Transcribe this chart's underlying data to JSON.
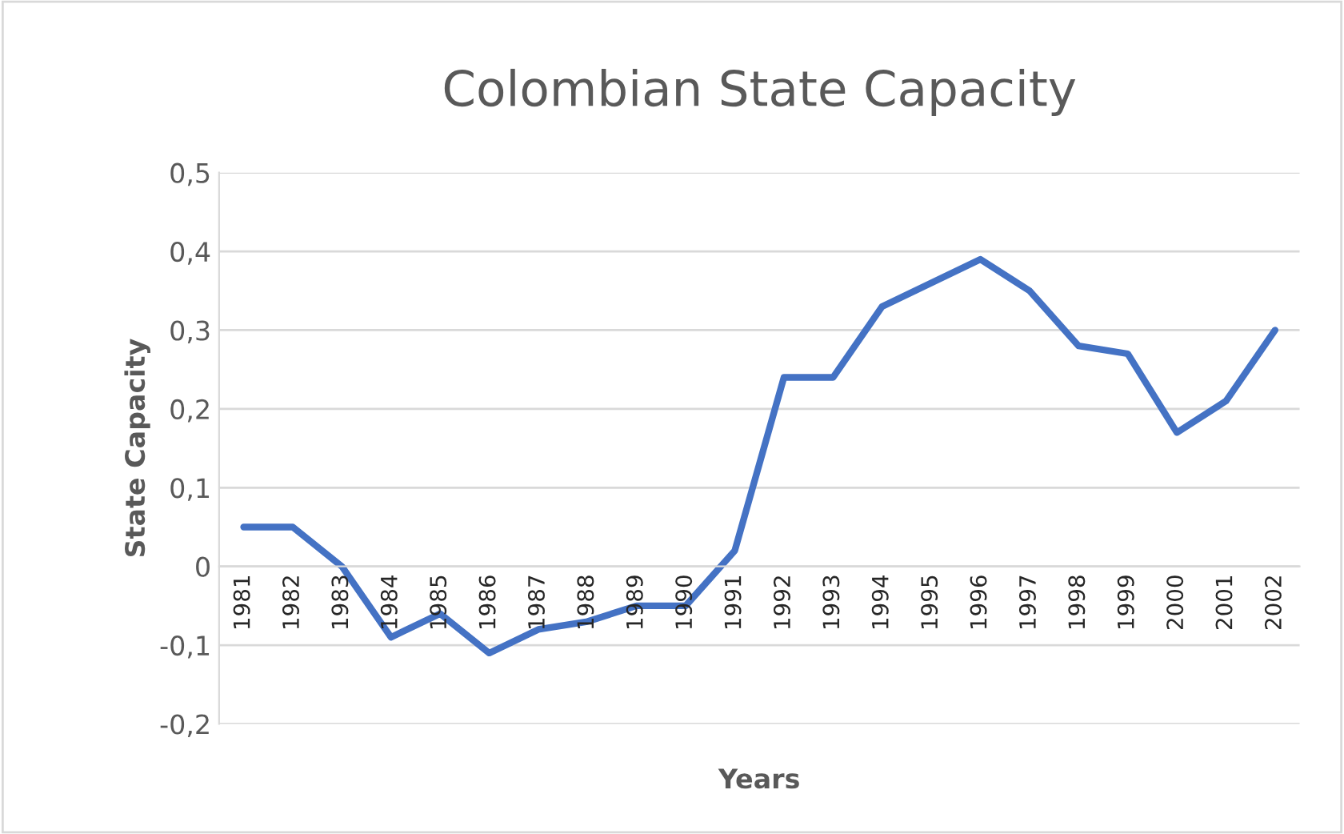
{
  "chart_data": {
    "type": "line",
    "title": "Colombian State Capacity",
    "xlabel": "Years",
    "ylabel": "State Capacity",
    "categories": [
      "1981",
      "1982",
      "1983",
      "1984",
      "1985",
      "1986",
      "1987",
      "1988",
      "1989",
      "1990",
      "1991",
      "1992",
      "1993",
      "1994",
      "1995",
      "1996",
      "1997",
      "1998",
      "1999",
      "2000",
      "2001",
      "2002"
    ],
    "series": [
      {
        "color": "#4472c4",
        "values": [
          0.05,
          0.05,
          0.0,
          -0.09,
          -0.06,
          -0.11,
          -0.08,
          -0.07,
          -0.05,
          -0.05,
          0.02,
          0.24,
          0.24,
          0.33,
          0.36,
          0.39,
          0.35,
          0.28,
          0.27,
          0.17,
          0.21,
          0.3
        ]
      }
    ],
    "ylim": [
      -0.2,
      0.5
    ],
    "yticks": [
      {
        "value": -0.2,
        "label": "-0,2"
      },
      {
        "value": -0.1,
        "label": "-0,1"
      },
      {
        "value": 0,
        "label": "0"
      },
      {
        "value": 0.1,
        "label": "0,1"
      },
      {
        "value": 0.2,
        "label": "0,2"
      },
      {
        "value": 0.3,
        "label": "0,3"
      },
      {
        "value": 0.4,
        "label": "0,4"
      },
      {
        "value": 0.5,
        "label": "0,5"
      }
    ],
    "grid": "y",
    "marker": "none",
    "line_style": "solid"
  }
}
